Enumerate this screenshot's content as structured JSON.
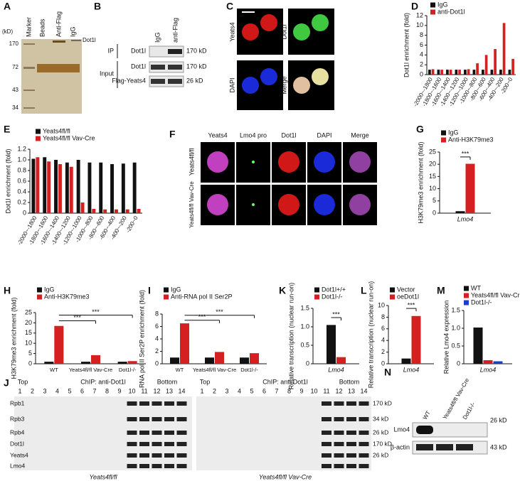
{
  "chart_data": [
    {
      "type": "bar",
      "label": "D",
      "y_label": "Dot1l enrichment (fold)",
      "categories": [
        "-2000~-1800",
        "-1800~-1600",
        "-1600~-1400",
        "-1400~-1200",
        "-1200~-1000",
        "-1000~-800",
        "-800~-600",
        "-600~-400",
        "-400~-200",
        "-200~0"
      ],
      "series": [
        {
          "name": "IgG",
          "color": "#111111",
          "values": [
            1.0,
            1.0,
            1.0,
            1.0,
            1.0,
            1.0,
            1.0,
            1.0,
            1.0,
            1.0
          ]
        },
        {
          "name": "anti-Dot1l",
          "color": "#d42020",
          "values": [
            1.1,
            1.0,
            1.0,
            1.0,
            1.1,
            2.3,
            4.0,
            5.2,
            10.5,
            3.2
          ]
        }
      ],
      "ylim": [
        0,
        12
      ],
      "yticks": [
        0,
        2,
        4,
        6,
        8,
        10,
        12
      ]
    },
    {
      "type": "bar",
      "label": "E",
      "y_label": "Dot1l enrichment (fold)",
      "categories": [
        "-2000~-1800",
        "-1800~-1600",
        "-1600~-1400",
        "-1400~-1200",
        "-1200~-1000",
        "-1000~-800",
        "-800~-600",
        "-600~-400",
        "-400~-200",
        "-200~0"
      ],
      "series": [
        {
          "name": "Yeats4fl/fl",
          "color": "#111111",
          "values": [
            1.02,
            1.05,
            1.0,
            0.95,
            1.0,
            0.95,
            0.95,
            0.92,
            0.93,
            0.95
          ]
        },
        {
          "name": "Yeats4fl/fl Vav-Cre",
          "color": "#d42020",
          "values": [
            1.05,
            0.97,
            0.92,
            0.87,
            0.2,
            0.08,
            0.07,
            0.07,
            0.07,
            0.08
          ]
        }
      ],
      "ylim": [
        0,
        1.2
      ],
      "yticks": [
        0,
        0.2,
        0.4,
        0.6,
        0.8,
        {
          "value": 1,
          "label": "1.0"
        },
        1.2
      ]
    },
    {
      "type": "bar",
      "label": "G",
      "y_label": "H3K79me3 enrichment (fold)",
      "categories": [
        "Lmo4"
      ],
      "series": [
        {
          "name": "IgG",
          "color": "#111111",
          "values": [
            0.8
          ]
        },
        {
          "name": "Anti-H3K79me3",
          "color": "#d42020",
          "values": [
            20.2
          ]
        }
      ],
      "ylim": [
        0,
        25
      ],
      "yticks": [
        0,
        5,
        10,
        15,
        20,
        25
      ],
      "annotations": [
        "***"
      ]
    },
    {
      "type": "bar",
      "label": "H",
      "y_label": "H3K79me3 enrichment (fold)",
      "categories": [
        "WT",
        "Yeats4fl/fl Vav-Cre",
        "Dot1l-/-"
      ],
      "series": [
        {
          "name": "IgG",
          "color": "#111111",
          "values": [
            1.0,
            1.0,
            1.0
          ]
        },
        {
          "name": "Anti-H3K79me3",
          "color": "#d42020",
          "values": [
            18.5,
            4.2,
            1.3
          ]
        }
      ],
      "ylim": [
        0,
        25
      ],
      "yticks": [
        0,
        5,
        10,
        15,
        20,
        25
      ],
      "annotations": [
        "***",
        "***"
      ]
    },
    {
      "type": "bar",
      "label": "I",
      "y_label": "RNA pol II Ser2P enrichment (fold)",
      "categories": [
        "WT",
        "Yeats4fl/fl Vav-Cre",
        "Dot1l-/-"
      ],
      "series": [
        {
          "name": "IgG",
          "color": "#111111",
          "values": [
            1.0,
            1.0,
            1.0
          ]
        },
        {
          "name": "Anti-RNA pol II Ser2P",
          "color": "#d42020",
          "values": [
            6.5,
            1.9,
            1.7
          ]
        }
      ],
      "ylim": [
        0,
        8
      ],
      "yticks": [
        0,
        2,
        4,
        6,
        8
      ],
      "annotations": [
        "***",
        "***"
      ]
    },
    {
      "type": "bar",
      "label": "K",
      "y_label": "Relative transcription (nuclear run-on)",
      "categories": [
        "Lmo4"
      ],
      "series": [
        {
          "name": "Dot1l+/+",
          "color": "#111111",
          "values": [
            1.05
          ]
        },
        {
          "name": "Dot1l-/-",
          "color": "#d42020",
          "values": [
            0.18
          ]
        }
      ],
      "ylim": [
        0,
        1.5
      ],
      "yticks": [
        0,
        0.5,
        {
          "value": 1,
          "label": "1.0"
        },
        1.5
      ],
      "annotations": [
        "***"
      ]
    },
    {
      "type": "bar",
      "label": "L",
      "y_label": "Relative transcription (nuclear run-on)",
      "categories": [
        "Lmo4"
      ],
      "series": [
        {
          "name": "Vector",
          "color": "#111111",
          "values": [
            0.9
          ]
        },
        {
          "name": "oeDot1l",
          "color": "#d42020",
          "values": [
            8.2
          ]
        }
      ],
      "ylim": [
        0,
        10
      ],
      "yticks": [
        0,
        2,
        4,
        6,
        8,
        10
      ],
      "annotations": [
        "***"
      ]
    },
    {
      "type": "bar",
      "label": "M",
      "y_label": "Relative Lmo4 expression",
      "categories": [
        "Lmo4"
      ],
      "series": [
        {
          "name": "WT",
          "color": "#111111",
          "values": [
            1.02
          ]
        },
        {
          "name": "Yeats4fl/fl Vav-Cre",
          "color": "#d42020",
          "values": [
            0.1
          ]
        },
        {
          "name": "Dot1l-/-",
          "color": "#1a3fd0",
          "values": [
            0.07
          ]
        }
      ],
      "ylim": [
        0,
        1.5
      ],
      "yticks": [
        0,
        0.5,
        {
          "value": 1,
          "label": "1.0"
        },
        1.5
      ]
    }
  ],
  "panel_A": {
    "label": "A",
    "unit": "(kD)",
    "lanes": [
      "Marker",
      "Beads",
      "Anti-Flag",
      "IgG"
    ],
    "band": "Dot1l",
    "markers": [
      170,
      72,
      43,
      34
    ]
  },
  "panel_B": {
    "label": "B",
    "lanes": [
      "IgG",
      "anti-Flag"
    ],
    "groups": [
      "IP",
      "Input"
    ],
    "rows": [
      "Dot1l",
      "Dot1l",
      "Flag-Yeats4"
    ],
    "sizes": [
      "170 kD",
      "170 kD",
      "26 kD"
    ]
  },
  "panel_C": {
    "label": "C",
    "channels": [
      "Yeats4",
      "Dot1l",
      "DAPI",
      "Merge"
    ]
  },
  "panel_F": {
    "label": "F",
    "channels": [
      "Yeats4",
      "Lmo4 pro",
      "Dot1l",
      "DAPI",
      "Merge"
    ],
    "rows": [
      "Yeats4fl/fl",
      "Yeats4fl/fl Vav-Cre"
    ]
  },
  "panel_J": {
    "label": "J",
    "top": "Top",
    "chip": "ChIP: anti-Dot1l",
    "bottom": "Bottom",
    "lanes": [
      1,
      2,
      3,
      4,
      5,
      6,
      7,
      8,
      9,
      10,
      11,
      12,
      13,
      14
    ],
    "rows": [
      "Rpb1",
      "Rpb3",
      "Rpb4",
      "Dot1l",
      "Yeats4",
      "Lmo4"
    ],
    "sizes": [
      "170 kD",
      "34 kD",
      "26 kD",
      "170 kD",
      "26 kD"
    ],
    "genotypes": [
      "Yeats4fl/fl",
      "Yeats4fl/fl Vav-Cre"
    ]
  },
  "panel_N": {
    "label": "N",
    "lanes": [
      "WT",
      "Yeats4fl/fl Vav-Cre",
      "Dot1l-/-"
    ],
    "rows": [
      "Lmo4",
      "β-actin"
    ],
    "sizes": [
      "26 kD",
      "43 kD"
    ]
  }
}
